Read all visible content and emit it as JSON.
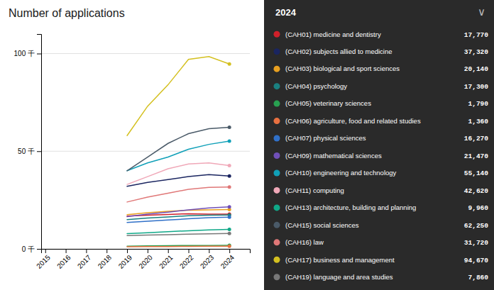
{
  "chart_data": {
    "type": "line",
    "title": "Number of applications",
    "annotations": [
      "∨"
    ],
    "legend_title": "2024",
    "legend": "right",
    "grid": true,
    "x": [
      2015,
      2016,
      2017,
      2018,
      2019,
      2020,
      2021,
      2022,
      2023,
      2024
    ],
    "xlim": [
      2014.8,
      2025.0
    ],
    "xticks": [
      2015,
      2016,
      2017,
      2018,
      2019,
      2020,
      2021,
      2022,
      2023,
      2024
    ],
    "ylim": [
      0,
      110000
    ],
    "yticks": [
      {
        "value": 0,
        "label": "0 千"
      },
      {
        "value": 50000,
        "label": "50 千"
      },
      {
        "value": 100000,
        "label": "100 千"
      }
    ],
    "series": [
      {
        "name": "(CAH01) medicine and dentistry",
        "color": "#d0202a",
        "values": [
          null,
          null,
          null,
          null,
          16800,
          17200,
          17600,
          18000,
          17800,
          17770
        ],
        "value_labels": [
          null,
          null,
          null,
          null,
          null,
          null,
          null,
          null,
          null,
          "17,770"
        ]
      },
      {
        "name": "(CAH02) subjects allied to medicine",
        "color": "#1a2560",
        "values": [
          null,
          null,
          null,
          null,
          32000,
          34000,
          35500,
          37000,
          38000,
          37320
        ],
        "value_labels": [
          null,
          null,
          null,
          null,
          null,
          null,
          null,
          null,
          null,
          "37,320"
        ]
      },
      {
        "name": "(CAH03) biological and sport sciences",
        "color": "#e8a020",
        "values": [
          null,
          null,
          null,
          null,
          17500,
          18500,
          19200,
          19800,
          20000,
          20140
        ],
        "value_labels": [
          null,
          null,
          null,
          null,
          null,
          null,
          null,
          null,
          null,
          "20,140"
        ]
      },
      {
        "name": "(CAH04) psychology",
        "color": "#1a8080",
        "values": [
          null,
          null,
          null,
          null,
          15000,
          15800,
          16300,
          17000,
          17200,
          17300
        ],
        "value_labels": [
          null,
          null,
          null,
          null,
          null,
          null,
          null,
          null,
          null,
          "17,300"
        ]
      },
      {
        "name": "(CAH05) veterinary sciences",
        "color": "#28a050",
        "values": [
          null,
          null,
          null,
          null,
          1400,
          1550,
          1650,
          1700,
          1760,
          1790
        ],
        "value_labels": [
          null,
          null,
          null,
          null,
          null,
          null,
          null,
          null,
          null,
          "1,790"
        ]
      },
      {
        "name": "(CAH06) agriculture, food and related studies",
        "color": "#e87040",
        "values": [
          null,
          null,
          null,
          null,
          1050,
          1150,
          1220,
          1280,
          1330,
          1360
        ],
        "value_labels": [
          null,
          null,
          null,
          null,
          null,
          null,
          null,
          null,
          null,
          "1,360"
        ]
      },
      {
        "name": "(CAH07) physical sciences",
        "color": "#3070c8",
        "values": [
          null,
          null,
          null,
          null,
          13500,
          14200,
          14800,
          15400,
          16000,
          16270
        ],
        "value_labels": [
          null,
          null,
          null,
          null,
          null,
          null,
          null,
          null,
          null,
          "16,270"
        ]
      },
      {
        "name": "(CAH09) mathematical sciences",
        "color": "#7050b8",
        "values": [
          null,
          null,
          null,
          null,
          16500,
          17800,
          18800,
          20000,
          21000,
          21470
        ],
        "value_labels": [
          null,
          null,
          null,
          null,
          null,
          null,
          null,
          null,
          null,
          "21,470"
        ]
      },
      {
        "name": "(CAH10) engineering and technology",
        "color": "#10a0b8",
        "values": [
          null,
          null,
          null,
          null,
          40000,
          44000,
          47000,
          51000,
          53500,
          55140
        ],
        "value_labels": [
          null,
          null,
          null,
          null,
          null,
          null,
          null,
          null,
          null,
          "55,140"
        ]
      },
      {
        "name": "(CAH11) computing",
        "color": "#f0a8b8",
        "values": [
          null,
          null,
          null,
          null,
          33000,
          37000,
          41000,
          43500,
          44000,
          42620
        ],
        "value_labels": [
          null,
          null,
          null,
          null,
          null,
          null,
          null,
          null,
          null,
          "42,620"
        ]
      },
      {
        "name": "(CAH13) architecture, building and planning",
        "color": "#10a888",
        "values": [
          null,
          null,
          null,
          null,
          7800,
          8300,
          8800,
          9300,
          9700,
          9960
        ],
        "value_labels": [
          null,
          null,
          null,
          null,
          null,
          null,
          null,
          null,
          null,
          "9,960"
        ]
      },
      {
        "name": "(CAH15) social sciences",
        "color": "#4a5a68",
        "values": [
          null,
          null,
          null,
          null,
          40000,
          47000,
          54000,
          59000,
          61500,
          62250
        ],
        "value_labels": [
          null,
          null,
          null,
          null,
          null,
          null,
          null,
          null,
          null,
          "62,250"
        ]
      },
      {
        "name": "(CAH16) law",
        "color": "#e07878",
        "values": [
          null,
          null,
          null,
          null,
          24000,
          26500,
          28500,
          30500,
          31500,
          31720
        ],
        "value_labels": [
          null,
          null,
          null,
          null,
          null,
          null,
          null,
          null,
          null,
          "31,720"
        ]
      },
      {
        "name": "(CAH17) business and management",
        "color": "#d4c020",
        "values": [
          null,
          null,
          null,
          null,
          58000,
          73000,
          84000,
          97000,
          98500,
          94670
        ],
        "value_labels": [
          null,
          null,
          null,
          null,
          null,
          null,
          null,
          null,
          null,
          "94,670"
        ]
      },
      {
        "name": "(CAH19) language and area studies",
        "color": "#787878",
        "values": [
          null,
          null,
          null,
          null,
          6800,
          7100,
          7300,
          7500,
          7700,
          7860
        ],
        "value_labels": [
          null,
          null,
          null,
          null,
          null,
          null,
          null,
          null,
          null,
          "7,860"
        ]
      }
    ]
  }
}
